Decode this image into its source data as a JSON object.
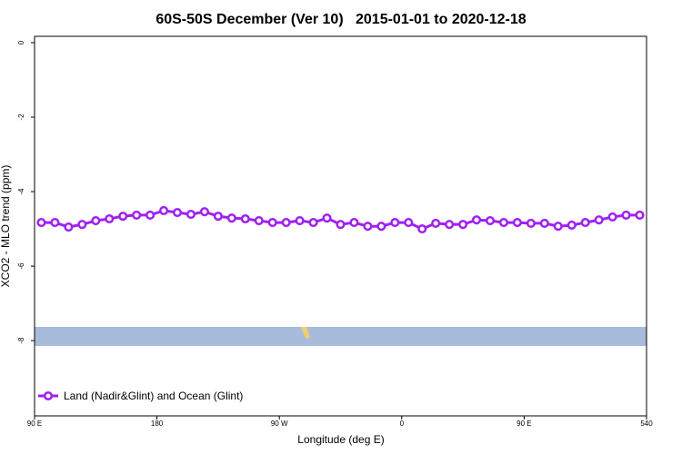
{
  "chart_data": {
    "type": "line",
    "title": "60S-50S December (Ver 10)   2015-01-01 to 2020-12-18",
    "x_label": "Longitude (deg E)",
    "y_label": "XCO2 - MLO trend (ppm)",
    "x": [
      95,
      105,
      115,
      125,
      135,
      145,
      155,
      165,
      175,
      185,
      195,
      205,
      215,
      225,
      235,
      245,
      255,
      265,
      275,
      285,
      295,
      305,
      315,
      325,
      335,
      345,
      355,
      365,
      375,
      385,
      395,
      405,
      415,
      425,
      435,
      445,
      455,
      465,
      475,
      485,
      495,
      505,
      515,
      525,
      535
    ],
    "series": [
      {
        "name": "Land (Nadir&Glint) and Ocean (Glint)",
        "color": "#a020f0",
        "values": [
          -4.83,
          -4.83,
          -4.95,
          -4.88,
          -4.78,
          -4.73,
          -4.66,
          -4.63,
          -4.63,
          -4.51,
          -4.56,
          -4.61,
          -4.54,
          -4.66,
          -4.71,
          -4.73,
          -4.78,
          -4.83,
          -4.83,
          -4.78,
          -4.83,
          -4.71,
          -4.88,
          -4.83,
          -4.93,
          -4.93,
          -4.83,
          -4.83,
          -5.0,
          -4.85,
          -4.88,
          -4.88,
          -4.76,
          -4.78,
          -4.83,
          -4.83,
          -4.85,
          -4.85,
          -4.93,
          -4.9,
          -4.83,
          -4.76,
          -4.68,
          -4.63,
          -4.63
        ]
      }
    ],
    "xlim": [
      90,
      540
    ],
    "xticks": [
      {
        "value": 90,
        "label": "90 E"
      },
      180,
      {
        "value": 270,
        "label": "90 W"
      },
      {
        "value": 360,
        "label": "0"
      },
      {
        "value": 450,
        "label": "90 E"
      },
      540
    ],
    "ylim": [
      -10.02,
      0.17
    ],
    "yticks": [
      0,
      -2,
      -4,
      -6,
      -8
    ],
    "legend": "bottom-left"
  }
}
